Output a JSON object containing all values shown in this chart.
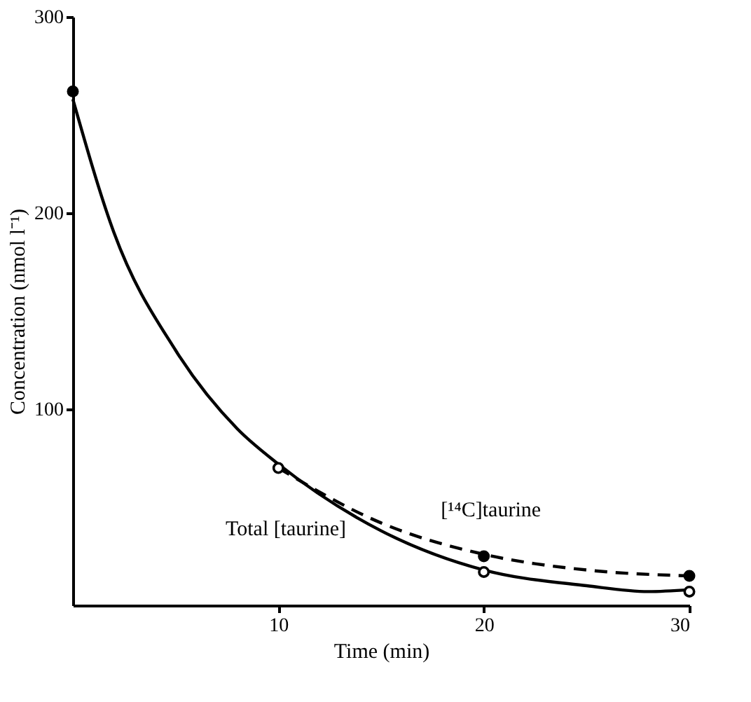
{
  "chart_data": {
    "type": "line",
    "xlabel": "Time (min)",
    "ylabel": "Concentration (nmol l⁻¹)",
    "xlim": [
      0,
      30
    ],
    "xticks": [
      10,
      20,
      30
    ],
    "ylim": [
      0,
      300
    ],
    "yticks": [
      100,
      200,
      300
    ],
    "grid": false,
    "series": [
      {
        "name": "Total [taurine]",
        "color": "#000000",
        "line_style": "solid",
        "marker": "none",
        "x": [
          0,
          2,
          5,
          8,
          10,
          15,
          20,
          25,
          28,
          30
        ],
        "values": [
          258,
          190,
          130,
          90,
          72,
          38,
          18,
          10,
          7,
          8
        ]
      },
      {
        "name": "[¹⁴C]taurine",
        "color": "#000000",
        "line_style": "dashed",
        "marker": "none",
        "x": [
          10,
          15,
          20,
          25,
          30
        ],
        "values": [
          70,
          42,
          26,
          18,
          15
        ]
      },
      {
        "type": "scatter",
        "color": "#ffffff",
        "marker": "circle",
        "x": [
          10,
          20,
          30
        ],
        "values": [
          70,
          17,
          7
        ]
      },
      {
        "type": "scatter",
        "color": "#000000",
        "marker": "circle",
        "x": [
          0,
          20,
          30
        ],
        "values": [
          262,
          25,
          15
        ]
      }
    ]
  }
}
